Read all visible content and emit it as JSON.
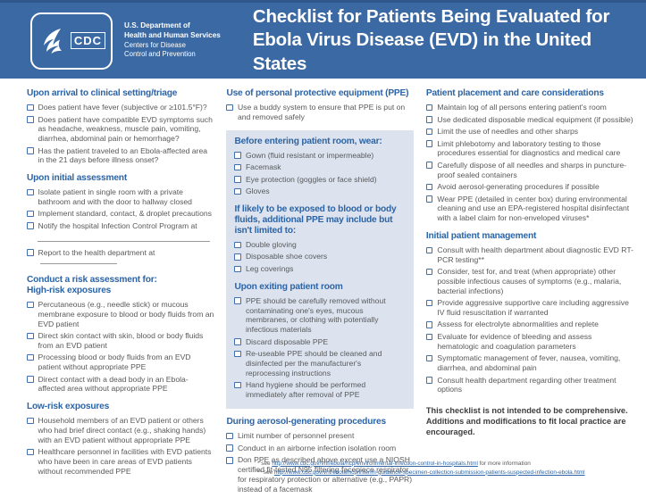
{
  "colors": {
    "header_bg": "#3a69a4",
    "heading_blue": "#2c64a5",
    "checkbox_blue": "#3f6fae",
    "box_bg": "#dce3ee",
    "text_gray": "#58595b"
  },
  "header": {
    "logo_acronym": "CDC",
    "org_lines": [
      "U.S. Department of",
      "Health and Human Services",
      "Centers for Disease",
      "Control and Prevention"
    ],
    "title_line1": "Checklist for Patients Being Evaluated for",
    "title_line2": "Ebola Virus Disease (EVD) in the United States"
  },
  "columns": [
    {
      "blocks": [
        {
          "type": "section",
          "heading": [
            "Upon arrival to clinical setting/triage"
          ],
          "items": [
            "Does patient have fever (subjective or ≥101.5°F)?",
            "Does patient have compatible EVD symptoms such as headache, weakness, muscle pain, vomiting, diarrhea, abdominal pain or hemorrhage?",
            "Has the patient traveled to an Ebola-affected area in the 21 days before illness onset?"
          ]
        },
        {
          "type": "section",
          "heading": [
            "Upon initial assessment"
          ],
          "items": [
            "Isolate patient in single room with a private bathroom and with the door to hallway closed",
            "Implement standard, contact, & droplet precautions",
            {
              "text": "Notify the hospital Infection Control Program at",
              "block_blank": true
            },
            {
              "text": "Report to the health department at",
              "inline_blank": true
            }
          ]
        },
        {
          "type": "section",
          "heading": [
            "Conduct a risk assessment for:",
            "High-risk exposures"
          ],
          "items": [
            "Percutaneous (e.g., needle stick) or mucous membrane exposure to blood or body fluids from an EVD patient",
            "Direct skin contact with skin, blood or body fluids from an EVD patient",
            "Processing blood or body fluids from an EVD patient without appropriate PPE",
            "Direct contact with a dead body in an Ebola-affected area without appropriate PPE"
          ]
        },
        {
          "type": "section",
          "heading": [
            "Low-risk exposures"
          ],
          "items": [
            "Household members of an EVD patient or others who had brief direct contact (e.g., shaking hands) with an EVD patient without appropriate PPE",
            "Healthcare personnel in facilities with EVD patients who have been in care areas of EVD patients without recommended PPE"
          ]
        }
      ]
    },
    {
      "blocks": [
        {
          "type": "section",
          "heading": [
            "Use of personal protective equipment (PPE)"
          ],
          "items": [
            "Use a buddy system to ensure that PPE is put on and removed safely"
          ]
        },
        {
          "type": "box",
          "sections": [
            {
              "heading": [
                "Before entering patient room, wear:"
              ],
              "items": [
                "Gown (fluid resistant or impermeable)",
                "Facemask",
                "Eye protection (goggles or face shield)",
                "Gloves"
              ]
            },
            {
              "heading": [
                "If likely to be exposed to blood or body",
                "fluids, additional PPE may include but",
                "isn't limited to:"
              ],
              "items": [
                "Double gloving",
                "Disposable shoe covers",
                "Leg coverings"
              ]
            },
            {
              "heading": [
                "Upon exiting patient room"
              ],
              "items": [
                "PPE should be carefully removed without contaminating one's eyes, mucous membranes, or clothing with potentially infectious materials",
                "Discard disposable PPE",
                "Re-useable PPE should be cleaned and disinfected per the manufacturer's reprocessing instructions",
                "Hand hygiene should be performed immediately after removal of PPE"
              ]
            }
          ]
        },
        {
          "type": "section",
          "heading": [
            "During aerosol-generating procedures"
          ],
          "items": [
            "Limit number of personnel present",
            "Conduct in an airborne infection isolation room",
            "Don PPE as described above except use a NIOSH certified fit-tested N95 filtering facepiece respirator for respiratory protection or alternative (e.g., PAPR) instead of a facemask"
          ]
        }
      ]
    },
    {
      "blocks": [
        {
          "type": "section",
          "heading": [
            "Patient placement and care considerations"
          ],
          "items": [
            "Maintain log of all persons entering patient's room",
            "Use dedicated disposable medical equipment (if possible)",
            "Limit the use of needles and other sharps",
            "Limit phlebotomy and laboratory testing to those procedures essential for diagnostics and medical care",
            "Carefully dispose of all needles and sharps in puncture-proof sealed containers",
            "Avoid aerosol-generating procedures if possible",
            "Wear PPE (detailed in center box) during environmental cleaning and use an EPA-registered hospital disinfectant with a label claim for non-enveloped viruses*"
          ]
        },
        {
          "type": "section",
          "heading": [
            "Initial patient management"
          ],
          "items": [
            "Consult with health department about diagnostic EVD RT-PCR testing**",
            "Consider, test for, and treat (when appropriate) other possible infectious causes of symptoms (e.g., malaria, bacterial infections)",
            "Provide aggressive supportive care including aggressive IV fluid resuscitation if warranted",
            "Assess for electrolyte abnormalities and replete",
            "Evaluate for evidence of bleeding and assess hematologic and coagulation parameters",
            "Symptomatic management of fever, nausea, vomiting, diarrhea, and abdominal pain",
            "Consult health department regarding other treatment options"
          ]
        },
        {
          "type": "note",
          "text": "This checklist is not intended to be comprehensive. Additions and modifications to fit local practice are encouraged."
        }
      ]
    }
  ],
  "footnotes": [
    {
      "prefix": "* see ",
      "link": "http://www.cdc.gov/vhf/ebola/hcp/environmental-infection-control-in-hospitals.html",
      "suffix": " for more information"
    },
    {
      "prefix": "** see ",
      "link": "http://www.cdc.gov/vhf/ebola/hcp/interim-guidance-specimen-collection-submission-patients-suspected-infection-ebola.html",
      "suffix": ""
    }
  ]
}
